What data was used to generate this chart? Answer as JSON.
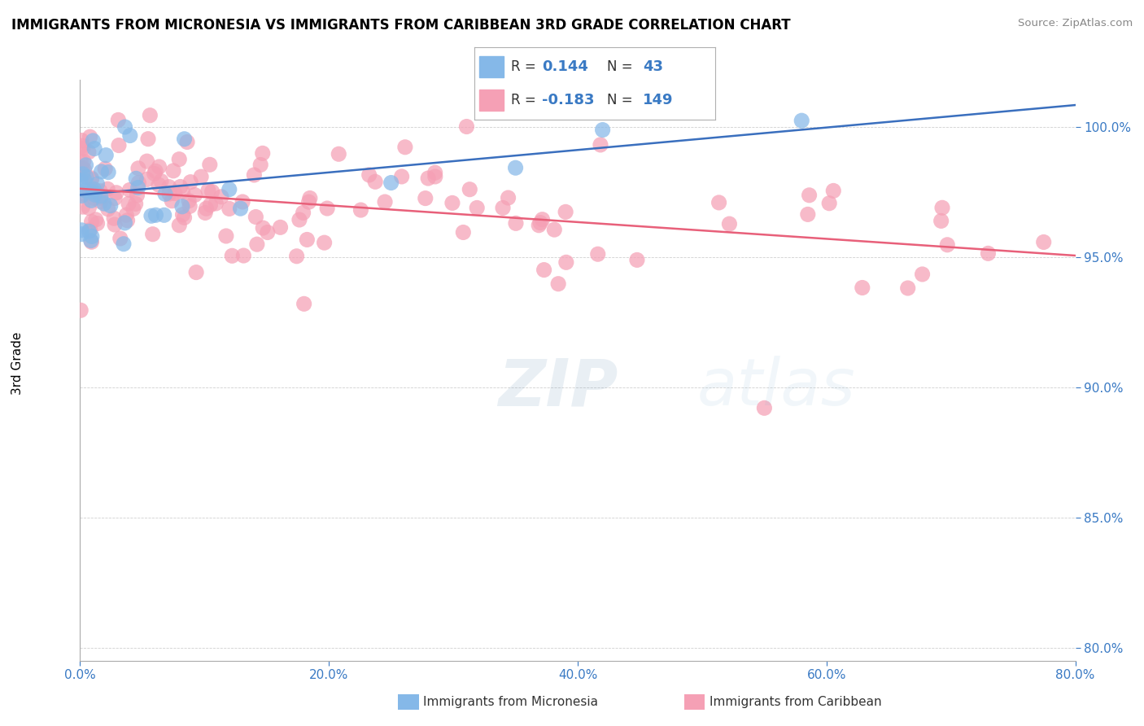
{
  "title": "IMMIGRANTS FROM MICRONESIA VS IMMIGRANTS FROM CARIBBEAN 3RD GRADE CORRELATION CHART",
  "source": "Source: ZipAtlas.com",
  "ylabel": "3rd Grade",
  "xmin": 0.0,
  "xmax": 80.0,
  "ymin": 79.5,
  "ymax": 101.8,
  "yticks": [
    80.0,
    85.0,
    90.0,
    95.0,
    100.0
  ],
  "xticks": [
    0.0,
    20.0,
    40.0,
    60.0,
    80.0
  ],
  "micronesia_R": 0.144,
  "micronesia_N": 43,
  "caribbean_R": -0.183,
  "caribbean_N": 149,
  "blue_color": "#85b8e8",
  "pink_color": "#f5a0b5",
  "blue_line_color": "#3a6fbe",
  "pink_line_color": "#e8607a",
  "grid_color": "#d0d0d0",
  "title_fontsize": 12,
  "tick_fontsize": 11,
  "ylabel_fontsize": 11
}
